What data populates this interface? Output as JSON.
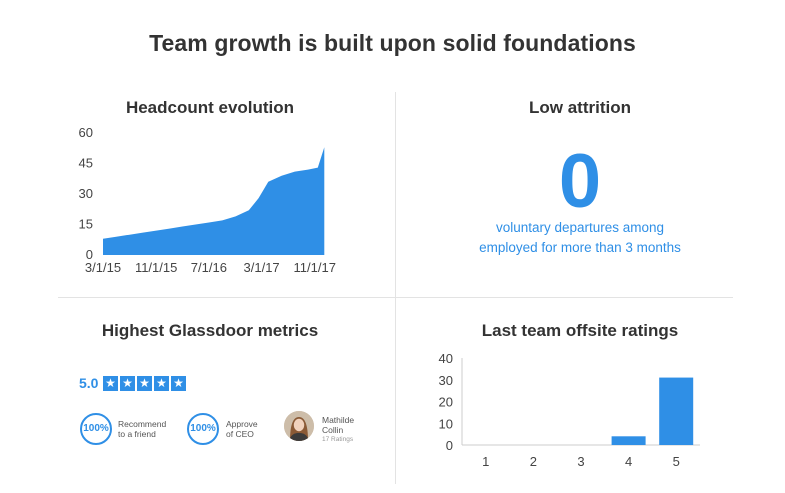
{
  "title": "Team growth is built upon solid foundations",
  "colors": {
    "accent": "#2f8fe6",
    "text": "#333333",
    "divider": "#e3e3e3"
  },
  "panels": {
    "headcount": {
      "title": "Headcount evolution"
    },
    "attrition": {
      "title": "Low attrition",
      "value": "0",
      "caption_line1": "voluntary departures among",
      "caption_line2": "employed for more than 3 months"
    },
    "glassdoor": {
      "title": "Highest Glassdoor metrics",
      "score": "5.0",
      "stars": 5,
      "star_icon": "star-icon",
      "recommend": {
        "value": "100%",
        "label_line1": "Recommend",
        "label_line2": "to a friend"
      },
      "approve": {
        "value": "100%",
        "label_line1": "Approve",
        "label_line2": "of CEO"
      },
      "ceo": {
        "name_line1": "Mathilde",
        "name_line2": "Collin",
        "ratings": "17 Ratings"
      }
    },
    "offsite": {
      "title": "Last team offsite ratings"
    }
  },
  "chart_data": [
    {
      "type": "area",
      "title": "Headcount evolution",
      "xlabel": "",
      "ylabel": "",
      "x_ticks": [
        "3/1/15",
        "11/1/15",
        "7/1/16",
        "3/1/17",
        "11/1/17"
      ],
      "y_ticks": [
        "60",
        "45",
        "30",
        "15",
        "0"
      ],
      "ylim": [
        0,
        60
      ],
      "xlim": [
        "2015-03-01",
        "2018-01-01"
      ],
      "grid": false,
      "color": "#2f8fe6",
      "points": [
        [
          "2015-03-01",
          8
        ],
        [
          "2015-05-01",
          9
        ],
        [
          "2015-07-01",
          10
        ],
        [
          "2015-09-01",
          11
        ],
        [
          "2015-11-01",
          12
        ],
        [
          "2016-01-01",
          13
        ],
        [
          "2016-03-01",
          14
        ],
        [
          "2016-05-01",
          15
        ],
        [
          "2016-07-01",
          16
        ],
        [
          "2016-09-01",
          17
        ],
        [
          "2016-11-01",
          19
        ],
        [
          "2017-01-01",
          22
        ],
        [
          "2017-02-15",
          28
        ],
        [
          "2017-04-01",
          36
        ],
        [
          "2017-06-01",
          39
        ],
        [
          "2017-08-01",
          41
        ],
        [
          "2017-10-01",
          42
        ],
        [
          "2017-11-15",
          43
        ],
        [
          "2017-12-15",
          53
        ]
      ]
    },
    {
      "type": "bar",
      "title": "Last team offsite ratings",
      "xlabel": "",
      "ylabel": "",
      "categories": [
        "1",
        "2",
        "3",
        "4",
        "5"
      ],
      "values": [
        0,
        0,
        0,
        4,
        31
      ],
      "ylim": [
        0,
        40
      ],
      "y_ticks": [
        "40",
        "30",
        "20",
        "10",
        "0"
      ],
      "grid": false,
      "color": "#2f8fe6"
    }
  ]
}
